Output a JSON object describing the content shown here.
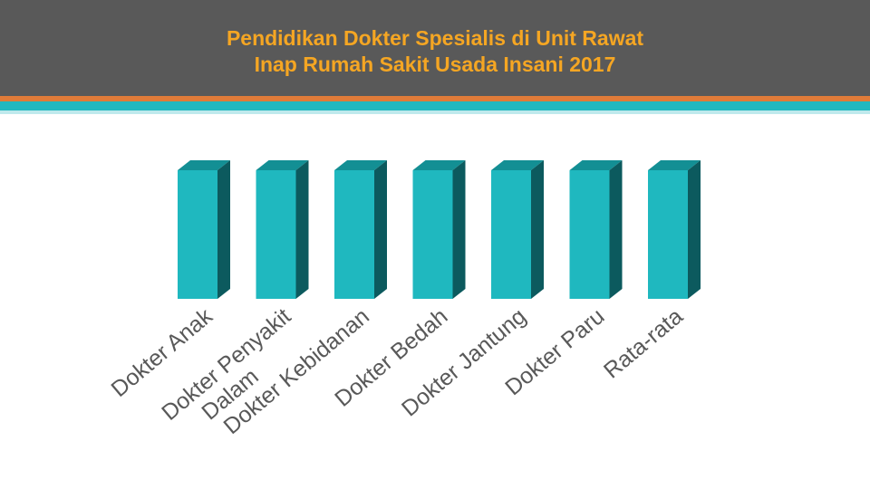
{
  "title_line1": "Pendidikan Dokter Spesialis di Unit Rawat",
  "title_line2": "Inap Rumah Sakit Usada Insani 2017",
  "colors": {
    "header_bg": "#595959",
    "title": "#f5a623",
    "accent_orange": "#e07b39",
    "accent_teal": "#22b8c0",
    "bar_front": "#1fb8bf",
    "bar_top": "#138f94",
    "bar_side": "#0c5a5e",
    "label": "#595959"
  },
  "chart_data": {
    "type": "bar",
    "title": "Pendidikan Dokter Spesialis di Unit Rawat Inap Rumah Sakit Usada Insani 2017",
    "categories": [
      [
        "Dokter Anak"
      ],
      [
        "Dokter Penyakit",
        "Dalam"
      ],
      [
        "Dokter Kebidanan"
      ],
      [
        "Dokter Bedah"
      ],
      [
        "Dokter Jantung"
      ],
      [
        "Dokter Paru"
      ],
      [
        "Rata-rata"
      ]
    ],
    "values": [
      1,
      1,
      1,
      1,
      1,
      1,
      1
    ],
    "ylim": [
      0,
      1
    ],
    "grid": false,
    "legend": "none",
    "bar_style": "3d"
  }
}
